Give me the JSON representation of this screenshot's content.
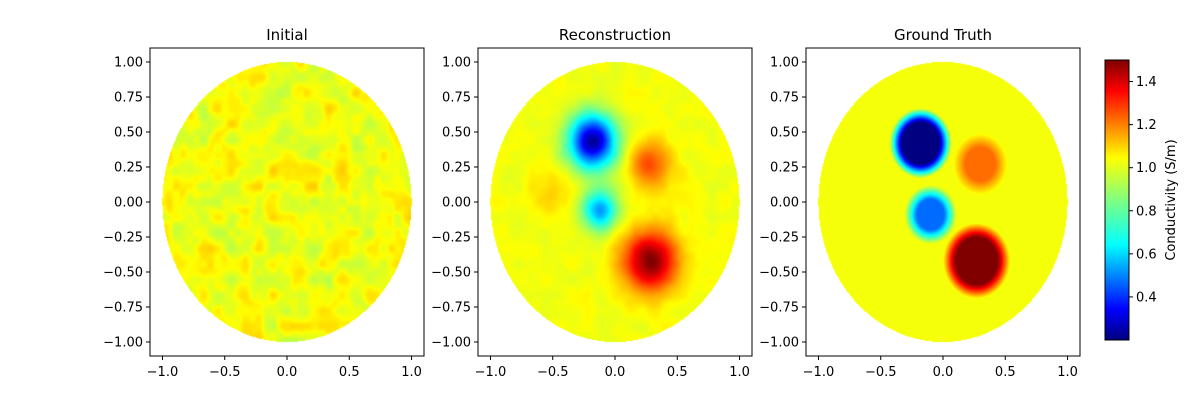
{
  "chart_data": {
    "type": "heatmap",
    "domain_shape": "unit disk",
    "xlim": [
      -1.1,
      1.1
    ],
    "ylim": [
      -1.1,
      1.1
    ],
    "xticks": [
      "−1.0",
      "−0.5",
      "0.0",
      "0.5",
      "1.0"
    ],
    "yticks": [
      "−1.00",
      "−0.75",
      "−0.50",
      "−0.25",
      "0.00",
      "0.25",
      "0.50",
      "0.75",
      "1.00"
    ],
    "colormap": "jet",
    "colorbar": {
      "label": "Conductivity (S/m)",
      "range": [
        0.2,
        1.5
      ],
      "ticks": [
        "0.4",
        "0.6",
        "0.8",
        "1.0",
        "1.2",
        "1.4"
      ]
    },
    "panels": [
      {
        "title": "Initial",
        "background": 1.0,
        "noise": 0.06,
        "inclusions": []
      },
      {
        "title": "Reconstruction",
        "background": 1.0,
        "noise": 0.02,
        "inclusions": [
          {
            "cx": -0.18,
            "cy": 0.43,
            "value": 0.25,
            "radius": 0.24,
            "soft": true
          },
          {
            "cx": 0.28,
            "cy": 0.27,
            "value": 1.25,
            "radius": 0.21,
            "soft": true
          },
          {
            "cx": -0.12,
            "cy": -0.06,
            "value": 0.55,
            "radius": 0.18,
            "soft": true
          },
          {
            "cx": 0.28,
            "cy": -0.42,
            "value": 1.5,
            "radius": 0.27,
            "soft": true
          },
          {
            "cx": -0.5,
            "cy": 0.05,
            "value": 1.08,
            "radius": 0.2,
            "soft": true
          }
        ]
      },
      {
        "title": "Ground Truth",
        "background": 1.0,
        "noise": 0,
        "inclusions": [
          {
            "cx": -0.18,
            "cy": 0.42,
            "value": 0.2,
            "radius": 0.2,
            "soft": false
          },
          {
            "cx": 0.3,
            "cy": 0.27,
            "value": 1.2,
            "radius": 0.17,
            "soft": false
          },
          {
            "cx": -0.1,
            "cy": -0.09,
            "value": 0.5,
            "radius": 0.16,
            "soft": false
          },
          {
            "cx": 0.27,
            "cy": -0.42,
            "value": 1.5,
            "radius": 0.22,
            "soft": false
          }
        ]
      }
    ]
  }
}
